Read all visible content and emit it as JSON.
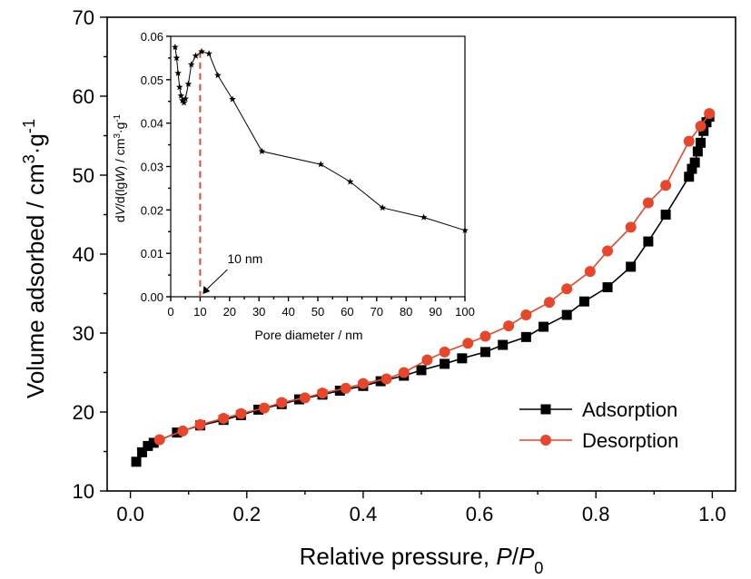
{
  "chart_data": [
    {
      "type": "line",
      "xlabel": "Relative pressure, P/P0",
      "ylabel": "Volume adsorbed / cm3·g-1",
      "xlim": [
        -0.04,
        1.04
      ],
      "ylim": [
        10,
        70
      ],
      "xticks": [
        "0.0",
        "0.2",
        "0.4",
        "0.6",
        "0.8",
        "1.0"
      ],
      "yticks": [
        "10",
        "20",
        "30",
        "40",
        "50",
        "60",
        "70"
      ],
      "grid": false,
      "legend_position": "bottom-right",
      "series": [
        {
          "name": "Adsorption",
          "color": "#000000",
          "marker": "square",
          "x": [
            0.01,
            0.02,
            0.03,
            0.04,
            0.08,
            0.12,
            0.16,
            0.19,
            0.22,
            0.26,
            0.29,
            0.33,
            0.36,
            0.4,
            0.43,
            0.47,
            0.5,
            0.54,
            0.57,
            0.61,
            0.64,
            0.68,
            0.71,
            0.75,
            0.78,
            0.82,
            0.86,
            0.89,
            0.92,
            0.96,
            0.965,
            0.97,
            0.975,
            0.98,
            0.985,
            0.99,
            0.995
          ],
          "y": [
            13.7,
            14.9,
            15.7,
            16.1,
            17.4,
            18.3,
            19.0,
            19.6,
            20.3,
            21.0,
            21.6,
            22.2,
            22.7,
            23.3,
            23.9,
            24.6,
            25.3,
            26.1,
            26.8,
            27.6,
            28.5,
            29.5,
            30.8,
            32.3,
            34.0,
            35.8,
            38.4,
            41.6,
            45.0,
            49.8,
            50.8,
            51.6,
            53.0,
            54.1,
            55.6,
            56.7,
            57.4
          ]
        },
        {
          "name": "Desorption",
          "color": "#e8452a",
          "marker": "circle",
          "x": [
            0.05,
            0.09,
            0.12,
            0.16,
            0.19,
            0.23,
            0.26,
            0.3,
            0.33,
            0.37,
            0.4,
            0.44,
            0.47,
            0.51,
            0.54,
            0.58,
            0.61,
            0.65,
            0.68,
            0.72,
            0.75,
            0.79,
            0.82,
            0.86,
            0.89,
            0.92,
            0.96,
            0.98,
            0.995
          ],
          "y": [
            16.5,
            17.6,
            18.4,
            19.2,
            19.8,
            20.5,
            21.2,
            21.8,
            22.4,
            23.0,
            23.6,
            24.2,
            25.0,
            26.6,
            27.6,
            28.7,
            29.6,
            30.9,
            32.3,
            33.9,
            35.6,
            37.8,
            40.4,
            43.4,
            46.5,
            48.7,
            54.3,
            56.2,
            57.8
          ]
        }
      ]
    },
    {
      "type": "line",
      "inset": true,
      "xlabel": "Pore diameter / nm",
      "ylabel": "dV/d(lgW) / cm3·g-1",
      "xlim": [
        0,
        100
      ],
      "ylim": [
        0,
        0.06
      ],
      "xticks": [
        "0",
        "10",
        "20",
        "30",
        "40",
        "50",
        "60",
        "70",
        "80",
        "90",
        "100"
      ],
      "yticks": [
        "0.00",
        "0.01",
        "0.02",
        "0.03",
        "0.04",
        "0.05",
        "0.06"
      ],
      "series": [
        {
          "color": "#000000",
          "marker": "star",
          "x": [
            1.5,
            2.0,
            2.5,
            3.0,
            3.5,
            4.0,
            4.5,
            5.0,
            6.0,
            7.0,
            8.5,
            10.5,
            13.0,
            16.0,
            21.0,
            31.0,
            51.0,
            61.0,
            72.0,
            86.0,
            100.0
          ],
          "y": [
            0.0575,
            0.055,
            0.0515,
            0.0483,
            0.0463,
            0.0452,
            0.0447,
            0.0456,
            0.049,
            0.0535,
            0.0555,
            0.0565,
            0.056,
            0.051,
            0.0455,
            0.0335,
            0.0305,
            0.0265,
            0.0205,
            0.0183,
            0.0153
          ]
        }
      ],
      "marker_line": {
        "x": 10,
        "color": "#e8452a",
        "style": "dashed"
      },
      "annotation": {
        "text": "10 nm",
        "x": 10,
        "y": 0
      }
    }
  ]
}
